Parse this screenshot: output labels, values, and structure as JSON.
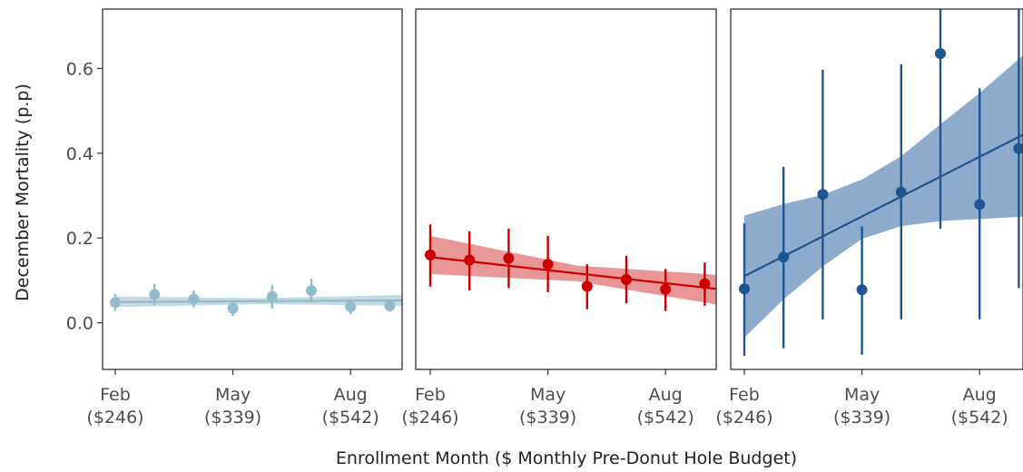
{
  "chart_data": {
    "type": "scatter",
    "xlabel": "Enrollment Month ($ Monthly Pre-Donut Hole Budget)",
    "ylabel": "December Mortality (p.p)",
    "ylim": [
      -0.11,
      0.74
    ],
    "xlim": [
      1.85,
      9.5
    ],
    "y_ticks": [
      {
        "value": 0.0,
        "label": "0.0"
      },
      {
        "value": 0.2,
        "label": "0.2"
      },
      {
        "value": 0.4,
        "label": "0.4"
      },
      {
        "value": 0.6,
        "label": "0.6"
      }
    ],
    "x_ticks": [
      {
        "value": 2,
        "line1": "Feb",
        "line2": "($246)"
      },
      {
        "value": 5,
        "line1": "May",
        "line2": "($339)"
      },
      {
        "value": 8,
        "line1": "Aug",
        "line2": "($542)"
      }
    ],
    "grid": false,
    "panels": [
      {
        "color": "#92bccc",
        "band_color": "#92bccc",
        "points": [
          {
            "x": 2,
            "y": 0.048,
            "lo": 0.028,
            "hi": 0.068
          },
          {
            "x": 3,
            "y": 0.067,
            "lo": 0.042,
            "hi": 0.092
          },
          {
            "x": 4,
            "y": 0.056,
            "lo": 0.036,
            "hi": 0.076
          },
          {
            "x": 5,
            "y": 0.034,
            "lo": 0.016,
            "hi": 0.052
          },
          {
            "x": 6,
            "y": 0.062,
            "lo": 0.033,
            "hi": 0.09
          },
          {
            "x": 7,
            "y": 0.076,
            "lo": 0.048,
            "hi": 0.104
          },
          {
            "x": 8,
            "y": 0.038,
            "lo": 0.02,
            "hi": 0.056
          },
          {
            "x": 9,
            "y": 0.04,
            "lo": 0.026,
            "hi": 0.054
          }
        ],
        "fit": [
          {
            "x": 2,
            "y": 0.049
          },
          {
            "x": 9.5,
            "y": 0.053
          }
        ],
        "ci": [
          {
            "x": 2,
            "lo": 0.037,
            "hi": 0.062
          },
          {
            "x": 5.75,
            "lo": 0.044,
            "hi": 0.058
          },
          {
            "x": 9.5,
            "lo": 0.04,
            "hi": 0.066
          }
        ]
      },
      {
        "color": "#cc0000",
        "band_color": "#e06a6a",
        "points": [
          {
            "x": 2,
            "y": 0.16,
            "lo": 0.085,
            "hi": 0.232
          },
          {
            "x": 3,
            "y": 0.148,
            "lo": 0.076,
            "hi": 0.216
          },
          {
            "x": 4,
            "y": 0.152,
            "lo": 0.082,
            "hi": 0.222
          },
          {
            "x": 5,
            "y": 0.138,
            "lo": 0.072,
            "hi": 0.205
          },
          {
            "x": 6,
            "y": 0.086,
            "lo": 0.032,
            "hi": 0.138
          },
          {
            "x": 7,
            "y": 0.102,
            "lo": 0.046,
            "hi": 0.158
          },
          {
            "x": 8,
            "y": 0.079,
            "lo": 0.028,
            "hi": 0.127
          },
          {
            "x": 9,
            "y": 0.092,
            "lo": 0.04,
            "hi": 0.142
          }
        ],
        "fit": [
          {
            "x": 2,
            "y": 0.155
          },
          {
            "x": 9.5,
            "y": 0.078
          }
        ],
        "ci": [
          {
            "x": 2,
            "lo": 0.115,
            "hi": 0.205
          },
          {
            "x": 5.75,
            "lo": 0.098,
            "hi": 0.135
          },
          {
            "x": 9.5,
            "lo": 0.04,
            "hi": 0.112
          }
        ]
      },
      {
        "color": "#1f5591",
        "band_color": "#5b87b8",
        "points": [
          {
            "x": 2,
            "y": 0.08,
            "lo": -0.078,
            "hi": 0.235
          },
          {
            "x": 3,
            "y": 0.155,
            "lo": -0.06,
            "hi": 0.368
          },
          {
            "x": 4,
            "y": 0.303,
            "lo": 0.008,
            "hi": 0.597
          },
          {
            "x": 5,
            "y": 0.078,
            "lo": -0.075,
            "hi": 0.228
          },
          {
            "x": 6,
            "y": 0.308,
            "lo": 0.008,
            "hi": 0.61
          },
          {
            "x": 7,
            "y": 0.635,
            "lo": 0.222,
            "hi": 0.74
          },
          {
            "x": 8,
            "y": 0.279,
            "lo": 0.008,
            "hi": 0.553
          },
          {
            "x": 9,
            "y": 0.411,
            "lo": 0.082,
            "hi": 0.74
          }
        ],
        "fit": [
          {
            "x": 2,
            "y": 0.11
          },
          {
            "x": 9.5,
            "y": 0.462
          }
        ],
        "ci": [
          {
            "x": 2,
            "lo": -0.035,
            "hi": 0.253
          },
          {
            "x": 3,
            "lo": 0.055,
            "hi": 0.28
          },
          {
            "x": 4,
            "lo": 0.133,
            "hi": 0.302
          },
          {
            "x": 5,
            "lo": 0.198,
            "hi": 0.338
          },
          {
            "x": 6,
            "lo": 0.228,
            "hi": 0.393
          },
          {
            "x": 7,
            "lo": 0.24,
            "hi": 0.468
          },
          {
            "x": 8,
            "lo": 0.245,
            "hi": 0.542
          },
          {
            "x": 9.5,
            "lo": 0.252,
            "hi": 0.662
          }
        ]
      }
    ]
  }
}
